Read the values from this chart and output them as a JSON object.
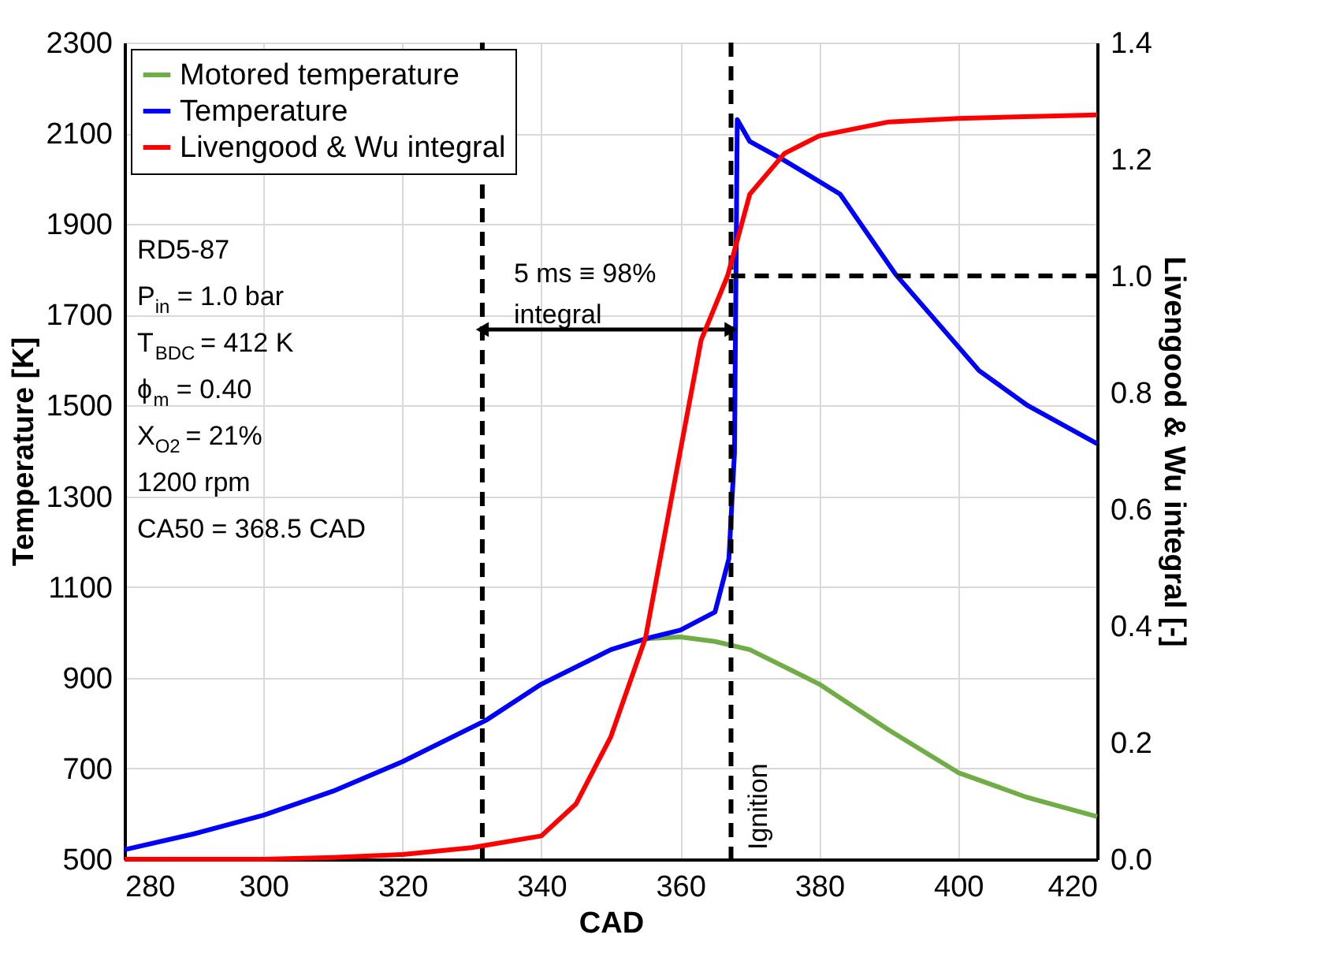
{
  "chart_data": {
    "type": "line",
    "xlabel": "CAD",
    "ylabel": "Temperature [K]",
    "y2label": "Livengood & Wu integral [-]",
    "xlim": [
      280,
      420
    ],
    "xticks": [
      280,
      300,
      320,
      340,
      360,
      380,
      400,
      420
    ],
    "ylim": [
      500,
      2300
    ],
    "yticks": [
      500,
      700,
      900,
      1100,
      1300,
      1500,
      1700,
      1900,
      2100,
      2300
    ],
    "y2lim": [
      0,
      1.4
    ],
    "y2ticks": [
      {
        "value": 0,
        "label": "0.0"
      },
      0.2,
      0.4,
      0.6,
      0.8,
      {
        "value": 1,
        "label": "1.0"
      },
      1.2,
      1.4
    ],
    "grid": true,
    "legend": "top left",
    "line_style": "solid",
    "marker": "none",
    "series": [
      {
        "name": "Motored temperature",
        "color": "#70ad47",
        "x": [
          355,
          360,
          365,
          370,
          380,
          390,
          400,
          410,
          420
        ],
        "values": [
          986,
          990,
          980,
          962,
          886,
          785,
          691,
          636,
          594
        ]
      },
      {
        "name": "Temperature",
        "color": "#0000ff",
        "x": [
          280,
          290,
          300,
          310,
          320,
          332,
          340,
          350,
          355,
          360,
          365,
          367,
          367.8,
          368.2,
          370,
          375,
          383,
          391,
          403,
          410,
          420
        ],
        "values": [
          521,
          556,
          597,
          650,
          715,
          806,
          886,
          962,
          986,
          1005,
          1045,
          1163,
          1396,
          2130,
          2082,
          2040,
          1966,
          1789,
          1577,
          1500,
          1416
        ]
      },
      {
        "name": "Livengood & Wu integral",
        "color": "#ff0000",
        "axis": "y2",
        "x": [
          280,
          300,
          310,
          320,
          330,
          340,
          345,
          350,
          355,
          360,
          363,
          366.8,
          370,
          375,
          380,
          390,
          400,
          420
        ],
        "values": [
          0,
          0,
          0.003,
          0.008,
          0.02,
          0.04,
          0.095,
          0.21,
          0.38,
          0.7,
          0.89,
          1.0,
          1.14,
          1.21,
          1.24,
          1.264,
          1.27,
          1.276
        ]
      }
    ],
    "ref_lines": [
      {
        "axis": "x",
        "value": 331.5,
        "color": "#000000",
        "line_style": "dashed"
      },
      {
        "axis": "x",
        "value": 367.3,
        "label": "Ignition",
        "color": "#000000",
        "line_style": "dashed"
      },
      {
        "axis": "y2",
        "value": 1.0,
        "color": "#000000",
        "line_style": "dashed"
      }
    ],
    "annotations": [
      "RD5-87",
      "P$_{in}$ = 1.0 bar",
      "T$_{BDC}$ = 412 K",
      "ϕ$_{m}$ = 0.40",
      "X$_{O2}$ = 21%",
      "1200 rpm",
      "CA50 = 368.5 CAD",
      "5 ms ≡ 98%\nintegral"
    ]
  }
}
